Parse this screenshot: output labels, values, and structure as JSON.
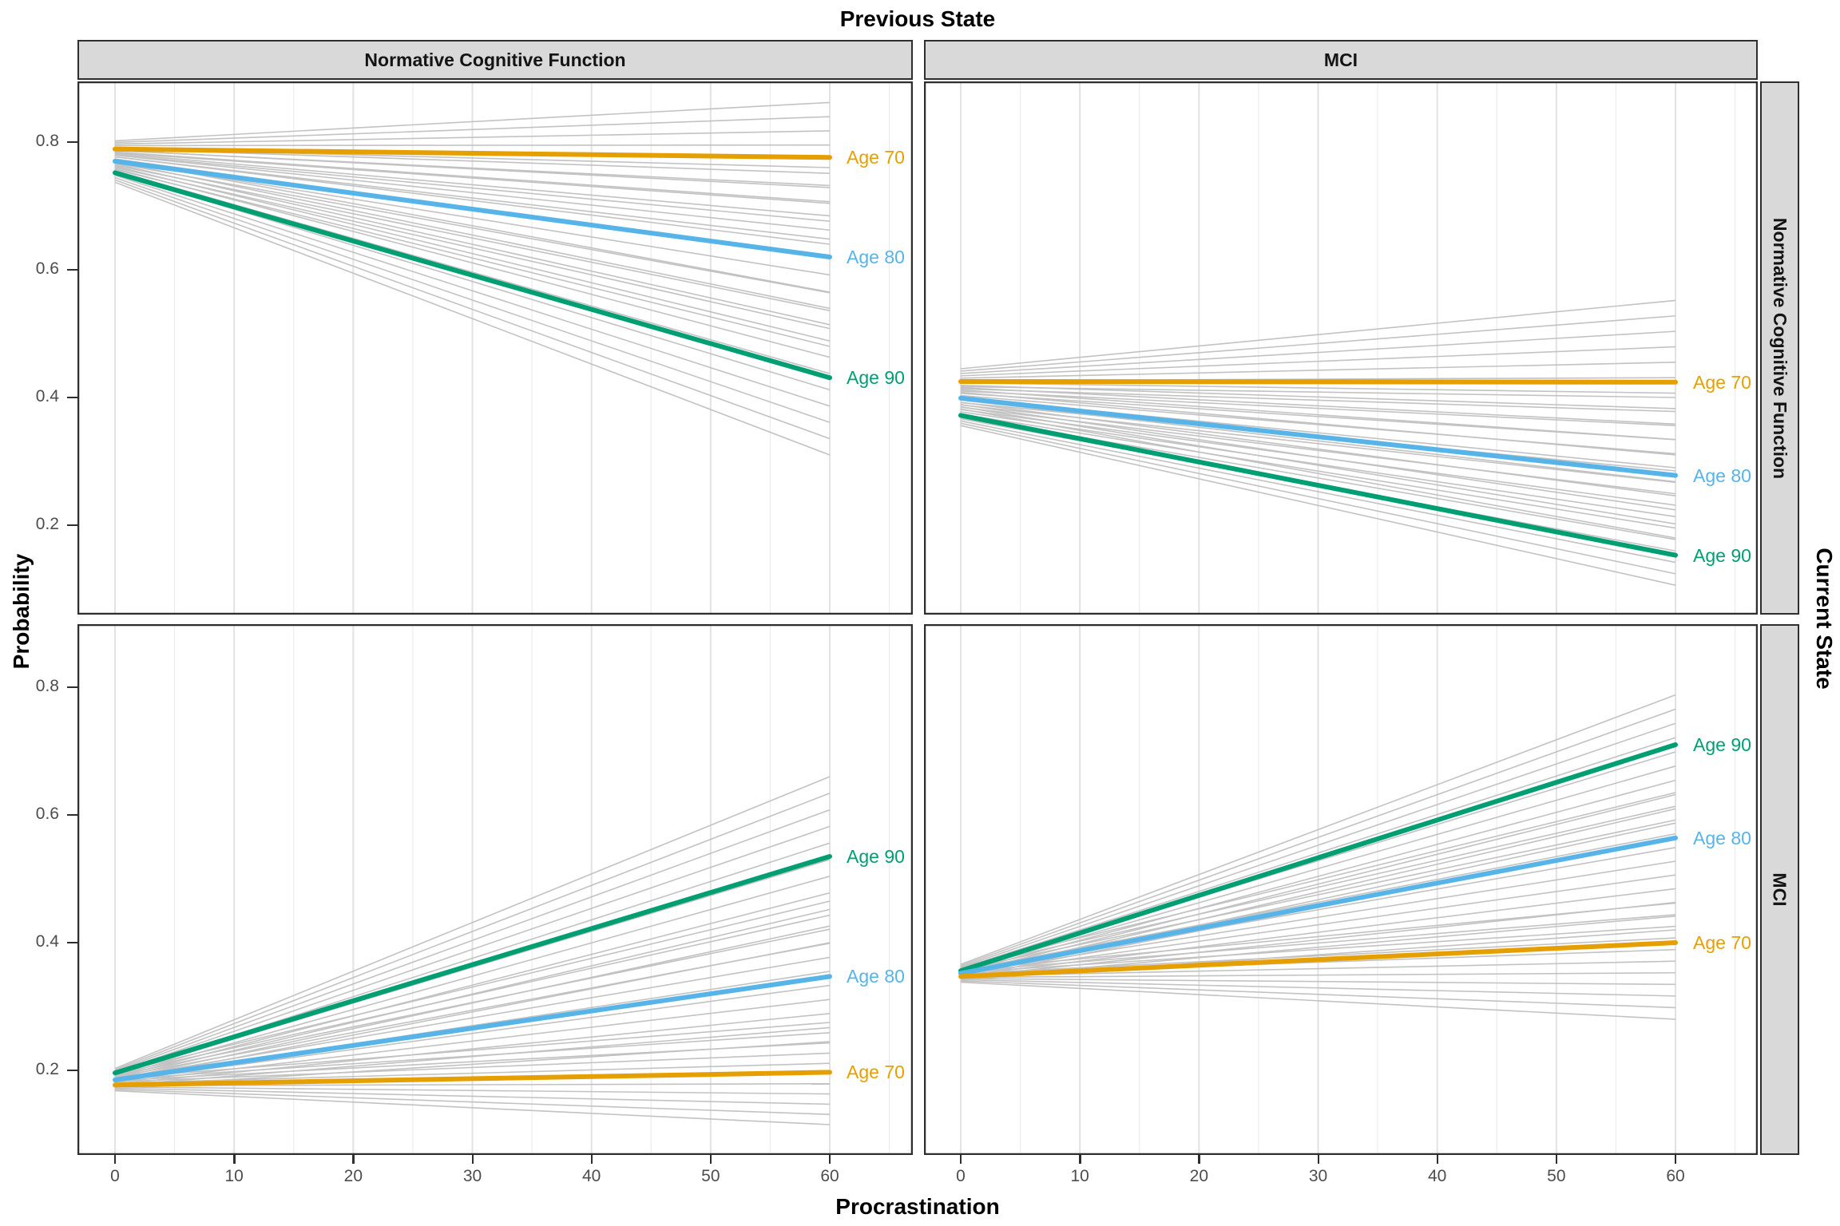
{
  "title": "Previous State",
  "x_axis": {
    "title": "Procrastination",
    "ticks": [
      "0",
      "10",
      "20",
      "30",
      "40",
      "50",
      "60"
    ]
  },
  "y_axis": {
    "title": "Probability",
    "ticks": [
      "0.8",
      "0.6",
      "0.4",
      "0.2"
    ]
  },
  "facets": {
    "columns": [
      "Normative Cognitive Function",
      "MCI"
    ],
    "rows": [
      "Normative Cognitive Function",
      "MCI"
    ],
    "outer_right": "Current State"
  },
  "palette": {
    "age70": "#E69F00",
    "age80": "#56B4E9",
    "age90": "#009E73",
    "draws_gray": "#C2C2C2",
    "grid_major": "#E2E2E2",
    "grid_minor": "#ECECEC",
    "panel_border": "#2E2E2E",
    "strip_bg": "#D9D9D9",
    "tick_text": "#4D4D4D",
    "title_text": "#000000"
  },
  "chart_data": {
    "type": "line",
    "title": "Previous State (columns) x Current State (rows) transition probabilities",
    "xlabel": "Procrastination",
    "ylabel": "Probability",
    "x_range": [
      0,
      60
    ],
    "xlim": [
      -3.15,
      66.95
    ],
    "ylim": [
      0.06,
      0.8975
    ],
    "x_ticks": [
      0,
      10,
      20,
      30,
      40,
      50,
      60
    ],
    "x_minor_step": 5,
    "y_ticks": [
      0.2,
      0.4,
      0.6,
      0.8
    ],
    "grid": "vertical-only",
    "legend_position": "direct-labels-right-of-lines",
    "panels": [
      {
        "previous_state": "Normative Cognitive Function",
        "current_state": "Normative Cognitive Function",
        "series": [
          {
            "label": "Age 70",
            "color_key": "age70",
            "start": 0.789,
            "end": 0.776,
            "draws": {
              "count": 11,
              "start_range": [
                0.777,
                0.802
              ],
              "end_range": [
                0.64,
                0.862
              ]
            }
          },
          {
            "label": "Age 80",
            "color_key": "age80",
            "start": 0.77,
            "end": 0.62,
            "draws": {
              "count": 11,
              "start_range": [
                0.757,
                0.79
              ],
              "end_range": [
                0.48,
                0.76
              ]
            }
          },
          {
            "label": "Age 90",
            "color_key": "age90",
            "start": 0.752,
            "end": 0.431,
            "draws": {
              "count": 11,
              "start_range": [
                0.737,
                0.773
              ],
              "end_range": [
                0.31,
                0.565
              ]
            }
          }
        ]
      },
      {
        "previous_state": "MCI",
        "current_state": "Normative Cognitive Function",
        "series": [
          {
            "label": "Age 70",
            "color_key": "age70",
            "start": 0.425,
            "end": 0.424,
            "draws": {
              "count": 11,
              "start_range": [
                0.408,
                0.445
              ],
              "end_range": [
                0.31,
                0.552
              ]
            }
          },
          {
            "label": "Age 80",
            "color_key": "age80",
            "start": 0.399,
            "end": 0.278,
            "draws": {
              "count": 11,
              "start_range": [
                0.382,
                0.417
              ],
              "end_range": [
                0.18,
                0.4
              ]
            }
          },
          {
            "label": "Age 90",
            "color_key": "age90",
            "start": 0.372,
            "end": 0.153,
            "draws": {
              "count": 11,
              "start_range": [
                0.356,
                0.392
              ],
              "end_range": [
                0.106,
                0.285
              ]
            }
          }
        ]
      },
      {
        "previous_state": "Normative Cognitive Function",
        "current_state": "MCI",
        "series": [
          {
            "label": "Age 70",
            "color_key": "age70",
            "start": 0.177,
            "end": 0.197,
            "draws": {
              "count": 11,
              "start_range": [
                0.168,
                0.188
              ],
              "end_range": [
                0.115,
                0.275
              ]
            }
          },
          {
            "label": "Age 80",
            "color_key": "age80",
            "start": 0.185,
            "end": 0.347,
            "draws": {
              "count": 11,
              "start_range": [
                0.174,
                0.196
              ],
              "end_range": [
                0.245,
                0.465
              ]
            }
          },
          {
            "label": "Age 90",
            "color_key": "age90",
            "start": 0.196,
            "end": 0.535,
            "draws": {
              "count": 11,
              "start_range": [
                0.183,
                0.203
              ],
              "end_range": [
                0.4,
                0.66
              ]
            }
          }
        ]
      },
      {
        "previous_state": "MCI",
        "current_state": "MCI",
        "series": [
          {
            "label": "Age 70",
            "color_key": "age70",
            "start": 0.347,
            "end": 0.4,
            "draws": {
              "count": 11,
              "start_range": [
                0.338,
                0.357
              ],
              "end_range": [
                0.28,
                0.462
              ]
            }
          },
          {
            "label": "Age 80",
            "color_key": "age80",
            "start": 0.352,
            "end": 0.564,
            "draws": {
              "count": 11,
              "start_range": [
                0.342,
                0.362
              ],
              "end_range": [
                0.42,
                0.635
              ]
            }
          },
          {
            "label": "Age 90",
            "color_key": "age90",
            "start": 0.356,
            "end": 0.71,
            "draws": {
              "count": 11,
              "start_range": [
                0.345,
                0.366
              ],
              "end_range": [
                0.565,
                0.788
              ]
            }
          }
        ]
      }
    ]
  }
}
